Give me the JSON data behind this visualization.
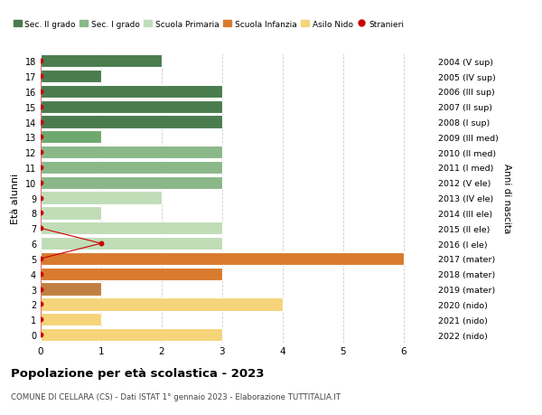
{
  "ages": [
    18,
    17,
    16,
    15,
    14,
    13,
    12,
    11,
    10,
    9,
    8,
    7,
    6,
    5,
    4,
    3,
    2,
    1,
    0
  ],
  "right_labels": [
    "2004 (V sup)",
    "2005 (IV sup)",
    "2006 (III sup)",
    "2007 (II sup)",
    "2008 (I sup)",
    "2009 (III med)",
    "2010 (II med)",
    "2011 (I med)",
    "2012 (V ele)",
    "2013 (IV ele)",
    "2014 (III ele)",
    "2015 (II ele)",
    "2016 (I ele)",
    "2017 (mater)",
    "2018 (mater)",
    "2019 (mater)",
    "2020 (nido)",
    "2021 (nido)",
    "2022 (nido)"
  ],
  "bars": [
    {
      "age": 18,
      "value": 2,
      "color": "#4a7c4e"
    },
    {
      "age": 17,
      "value": 1,
      "color": "#4a7c4e"
    },
    {
      "age": 16,
      "value": 3,
      "color": "#4a7c4e"
    },
    {
      "age": 15,
      "value": 3,
      "color": "#4a7c4e"
    },
    {
      "age": 14,
      "value": 3,
      "color": "#4a7c4e"
    },
    {
      "age": 13,
      "value": 1,
      "color": "#6fa86e"
    },
    {
      "age": 12,
      "value": 3,
      "color": "#8ab888"
    },
    {
      "age": 11,
      "value": 3,
      "color": "#8ab888"
    },
    {
      "age": 10,
      "value": 3,
      "color": "#8ab888"
    },
    {
      "age": 9,
      "value": 2,
      "color": "#c0ddb8"
    },
    {
      "age": 8,
      "value": 1,
      "color": "#c0ddb8"
    },
    {
      "age": 7,
      "value": 3,
      "color": "#c0ddb8"
    },
    {
      "age": 6,
      "value": 3,
      "color": "#c0ddb8"
    },
    {
      "age": 5,
      "value": 6,
      "color": "#d97b2e"
    },
    {
      "age": 4,
      "value": 3,
      "color": "#d97b2e"
    },
    {
      "age": 3,
      "value": 1,
      "color": "#c08040"
    },
    {
      "age": 2,
      "value": 4,
      "color": "#f5d47a"
    },
    {
      "age": 1,
      "value": 1,
      "color": "#f5d47a"
    },
    {
      "age": 0,
      "value": 3,
      "color": "#f5d47a"
    }
  ],
  "stranieri_x": [
    0,
    0,
    0,
    0,
    0,
    0,
    0,
    0,
    0,
    0,
    0,
    0,
    1,
    0,
    0,
    0,
    0,
    0,
    0
  ],
  "legend_items": [
    {
      "label": "Sec. II grado",
      "color": "#4a7c4e",
      "type": "patch"
    },
    {
      "label": "Sec. I grado",
      "color": "#8ab888",
      "type": "patch"
    },
    {
      "label": "Scuola Primaria",
      "color": "#c0ddb8",
      "type": "patch"
    },
    {
      "label": "Scuola Infanzia",
      "color": "#d97b2e",
      "type": "patch"
    },
    {
      "label": "Asilo Nido",
      "color": "#f5d47a",
      "type": "patch"
    },
    {
      "label": "Stranieri",
      "color": "#cc0000",
      "type": "circle"
    }
  ],
  "ylabel_left": "Età alunni",
  "ylabel_right": "Anni di nascita",
  "title": "Popolazione per età scolastica - 2023",
  "subtitle": "COMUNE DI CELLARA (CS) - Dati ISTAT 1° gennaio 2023 - Elaborazione TUTTITALIA.IT",
  "xlim": [
    0,
    6.5
  ],
  "ylim": [
    -0.5,
    18.5
  ],
  "xticks": [
    0,
    1,
    2,
    3,
    4,
    5,
    6
  ],
  "bg_color": "#ffffff",
  "grid_color": "#cccccc"
}
